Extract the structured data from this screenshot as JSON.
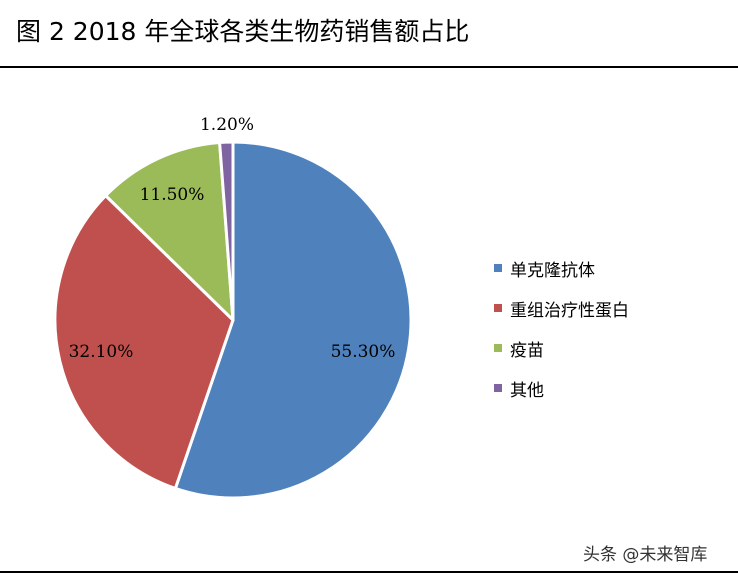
{
  "title": "图 2 2018 年全球各类生物药销售额占比",
  "watermark": "头条 @未来智库",
  "chart_data": {
    "type": "pie",
    "title": "图 2 2018 年全球各类生物药销售额占比",
    "legend_position": "right",
    "slices": [
      {
        "label": "单克隆抗体",
        "value": 55.3,
        "display": "55.30%",
        "color": "#4f81bd"
      },
      {
        "label": "重组治疗性蛋白",
        "value": 32.1,
        "display": "32.10%",
        "color": "#c0504d"
      },
      {
        "label": "疫苗",
        "value": 11.5,
        "display": "11.50%",
        "color": "#9bbb59"
      },
      {
        "label": "其他",
        "value": 1.2,
        "display": "1.20%",
        "color": "#8064a2"
      }
    ]
  }
}
